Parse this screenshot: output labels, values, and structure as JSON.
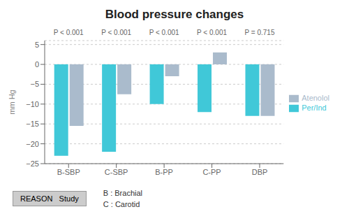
{
  "chart_data": {
    "type": "bar",
    "title": "Blood pressure changes",
    "y_label": "mm Hg",
    "categories": [
      "B-SBP",
      "C-SBP",
      "B-PP",
      "C-PP",
      "DBP"
    ],
    "series": [
      {
        "name": "Per/Ind",
        "color": "#40C8D8",
        "values": [
          -23,
          -22,
          -10,
          -12,
          -13
        ]
      },
      {
        "name": "Atenolol",
        "color": "#aabbcc",
        "values": [
          -15.5,
          -7.5,
          -3,
          3,
          -13
        ]
      }
    ],
    "annotations": [
      "P < 0.001",
      "P < 0.001",
      "P < 0.001",
      "P < 0.001",
      "P = 0.715"
    ],
    "footnotes": [
      "REASON   Study",
      "B : Brachial",
      "C : Carotid"
    ],
    "ylim": [
      -25,
      6
    ],
    "yticks": [
      5,
      0,
      {
        "value": -5,
        "label": "−5"
      },
      {
        "value": -10,
        "label": "−10"
      },
      {
        "value": -15,
        "label": "−15"
      },
      {
        "value": -20,
        "label": "−20"
      },
      {
        "value": -25,
        "label": "−25"
      }
    ],
    "grid": true
  }
}
